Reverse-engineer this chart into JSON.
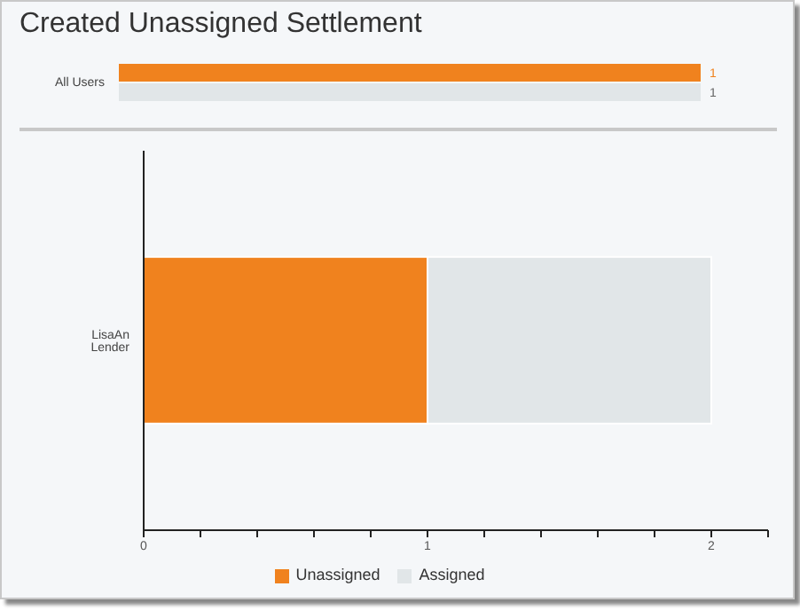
{
  "chart_data": [
    {
      "type": "bar",
      "title": "Created Unassigned Settlement",
      "orientation": "horizontal",
      "categories": [
        "All Users"
      ],
      "tick_labels": "y",
      "data_labels": true,
      "legend": false,
      "series": [
        {
          "color": "#f0821e",
          "values": [
            1
          ]
        },
        {
          "color": "#e1e6e8",
          "values": [
            1
          ]
        }
      ]
    },
    {
      "type": "bar",
      "orientation": "horizontal",
      "stacked": true,
      "categories": [
        "LisaAn Lender"
      ],
      "xlim": [
        0,
        2.2
      ],
      "xticks": [
        0,
        {
          "value": 0.2,
          "label": null
        },
        {
          "value": 0.4,
          "label": null
        },
        {
          "value": 0.6,
          "label": null
        },
        {
          "value": 0.8,
          "label": null
        },
        1,
        {
          "value": 1.2,
          "label": null
        },
        {
          "value": 1.4,
          "label": null
        },
        {
          "value": 1.6,
          "label": null
        },
        {
          "value": 1.8,
          "label": null
        },
        2,
        {
          "value": 2.2,
          "label": null
        }
      ],
      "legend": "bottom",
      "grid": false,
      "series": [
        {
          "name": "Unassigned",
          "color": "#f0821e",
          "values": [
            1
          ]
        },
        {
          "name": "Assigned",
          "color": "#e1e6e8",
          "values": [
            1
          ]
        }
      ]
    }
  ]
}
